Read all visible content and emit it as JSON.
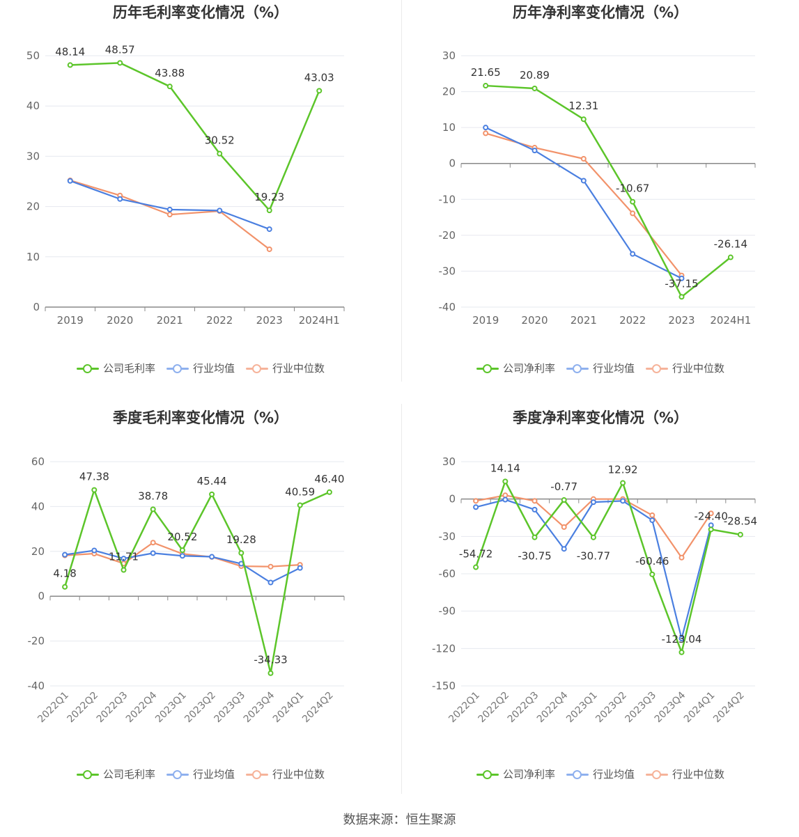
{
  "colors": {
    "company": "#5cc52a",
    "industry_avg": "#4a7fe0",
    "industry_median": "#f2926a"
  },
  "source": "数据来源：恒生聚源",
  "chart_data": [
    {
      "type": "line",
      "title": "历年毛利率变化情况（%）",
      "categories": [
        "2019",
        "2020",
        "2021",
        "2022",
        "2023",
        "2024H1"
      ],
      "ylim": [
        0,
        50
      ],
      "yticks": [
        0,
        10,
        20,
        30,
        40,
        50
      ],
      "series": [
        {
          "name": "公司毛利率",
          "values": [
            48.14,
            48.57,
            43.88,
            30.52,
            19.23,
            43.03
          ],
          "labels": [
            "48.14",
            "48.57",
            "43.88",
            "30.52",
            "19.23",
            "43.03"
          ]
        },
        {
          "name": "行业均值",
          "values": [
            25.1,
            21.5,
            19.4,
            19.2,
            15.5,
            null
          ]
        },
        {
          "name": "行业中位数",
          "values": [
            25.2,
            22.2,
            18.4,
            19.1,
            11.5,
            null
          ]
        }
      ],
      "legend": "bottom",
      "grid": true
    },
    {
      "type": "line",
      "title": "历年净利率变化情况（%）",
      "categories": [
        "2019",
        "2020",
        "2021",
        "2022",
        "2023",
        "2024H1"
      ],
      "ylim": [
        -40,
        30
      ],
      "yticks": [
        -40,
        -30,
        -20,
        -10,
        0,
        10,
        20,
        30
      ],
      "series": [
        {
          "name": "公司净利率",
          "values": [
            21.65,
            20.89,
            12.31,
            -10.67,
            -37.15,
            -26.14
          ],
          "labels": [
            "21.65",
            "20.89",
            "12.31",
            "-10.67",
            "-37.15",
            "-26.14"
          ]
        },
        {
          "name": "行业均值",
          "values": [
            10.0,
            3.6,
            -4.8,
            -25.2,
            -32.0,
            null
          ]
        },
        {
          "name": "行业中位数",
          "values": [
            8.4,
            4.4,
            1.3,
            -13.9,
            -31.2,
            null
          ]
        }
      ],
      "legend": "bottom",
      "grid": true
    },
    {
      "type": "line",
      "title": "季度毛利率变化情况（%）",
      "categories": [
        "2022Q1",
        "2022Q2",
        "2022Q3",
        "2022Q4",
        "2023Q1",
        "2023Q2",
        "2023Q3",
        "2023Q4",
        "2024Q1",
        "2024Q2"
      ],
      "ylim": [
        -40,
        60
      ],
      "yticks": [
        -40,
        -20,
        0,
        20,
        40,
        60
      ],
      "series": [
        {
          "name": "公司毛利率",
          "values": [
            4.18,
            47.38,
            11.71,
            38.78,
            20.52,
            45.44,
            19.28,
            -34.33,
            40.59,
            46.4
          ],
          "labels": [
            "4.18",
            "47.38",
            "11.71",
            "38.78",
            "20.52",
            "45.44",
            "19.28",
            "-34.33",
            "40.59",
            "46.40"
          ]
        },
        {
          "name": "行业均值",
          "values": [
            18.5,
            20.4,
            16.8,
            19.2,
            18.0,
            17.6,
            14.5,
            6.1,
            12.6,
            null
          ]
        },
        {
          "name": "行业中位数",
          "values": [
            18.2,
            19.0,
            14.6,
            23.9,
            18.9,
            17.5,
            13.4,
            13.2,
            14.0,
            null
          ]
        }
      ],
      "legend": "bottom",
      "grid": true
    },
    {
      "type": "line",
      "title": "季度净利率变化情况（%）",
      "categories": [
        "2022Q1",
        "2022Q2",
        "2022Q3",
        "2022Q4",
        "2023Q1",
        "2023Q2",
        "2023Q3",
        "2023Q4",
        "2024Q1",
        "2024Q2"
      ],
      "ylim": [
        -150,
        30
      ],
      "yticks": [
        -150,
        -120,
        -90,
        -60,
        -30,
        0,
        30
      ],
      "series": [
        {
          "name": "公司净利率",
          "values": [
            -54.72,
            14.14,
            -30.75,
            -0.77,
            -30.77,
            12.92,
            -60.46,
            -123.04,
            -24.4,
            -28.54
          ],
          "labels": [
            "-54.72",
            "14.14",
            "-30.75",
            "-0.77",
            "-30.77",
            "12.92",
            "-60.46",
            "-123.04",
            "-24.40",
            "-28.54"
          ]
        },
        {
          "name": "行业均值",
          "values": [
            -6.5,
            -0.5,
            -8.5,
            -40.0,
            -2.5,
            -1.5,
            -17.0,
            -112.0,
            -21.0,
            null
          ]
        },
        {
          "name": "行业中位数",
          "values": [
            -1.5,
            3.0,
            -1.5,
            -22.5,
            0.0,
            0.0,
            -13.0,
            -47.0,
            -11.5,
            null
          ]
        }
      ],
      "legend": "bottom",
      "grid": true
    }
  ]
}
